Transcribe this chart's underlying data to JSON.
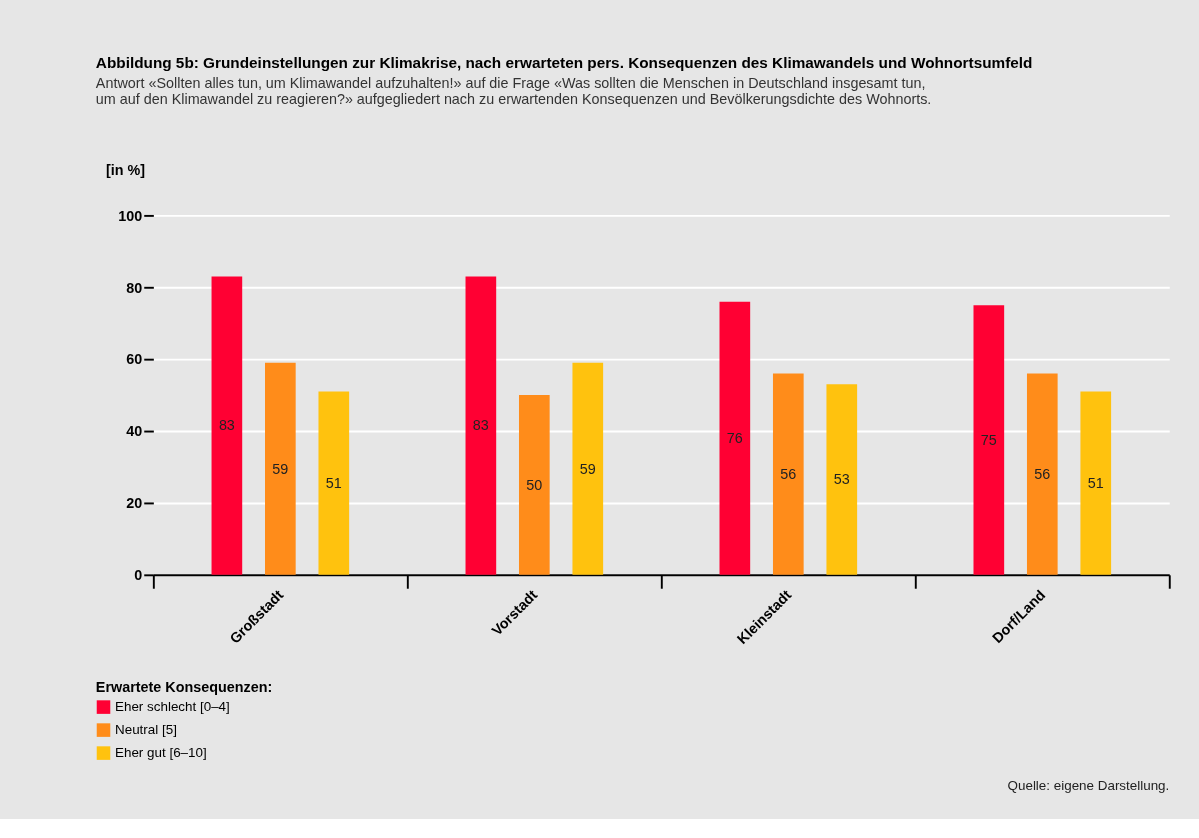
{
  "chart_data": {
    "type": "bar",
    "title": "Abbildung 5b: Grundeinstellungen zur Klimakrise, nach erwarteten pers. Konsequenzen des Klimawandels und Wohnortsumfeld",
    "subtitle": [
      "Antwort «Sollten alles tun, um Klimawandel aufzuhalten!» auf die Frage «Was sollten die Menschen in Deutschland insgesamt tun,",
      "um auf den Klimawandel zu reagieren?» aufgegliedert nach zu erwartenden Konsequenzen und Bevölkerungsdichte des Wohnorts."
    ],
    "ylabel": "[in %]",
    "legend_title": "Erwartete Konsequenzen:",
    "categories": [
      "Großstadt",
      "Vorstadt",
      "Kleinstadt",
      "Dorf/Land"
    ],
    "series": [
      {
        "name": "Eher schlecht [0–4]",
        "color": "#ff0033",
        "values": [
          83,
          83,
          76,
          75
        ]
      },
      {
        "name": "Neutral [5]",
        "color": "#ff8c1a",
        "values": [
          59,
          50,
          56,
          56
        ]
      },
      {
        "name": "Eher gut [6–10]",
        "color": "#ffc20e",
        "values": [
          51,
          59,
          53,
          51
        ]
      }
    ],
    "ylim": [
      0,
      100
    ],
    "yticks": [
      0,
      20,
      40,
      60,
      80,
      100
    ],
    "grid": "y",
    "legend": "bottom left",
    "data_labels": true,
    "annotations": [
      "Quelle: eigene Darstellung."
    ]
  }
}
